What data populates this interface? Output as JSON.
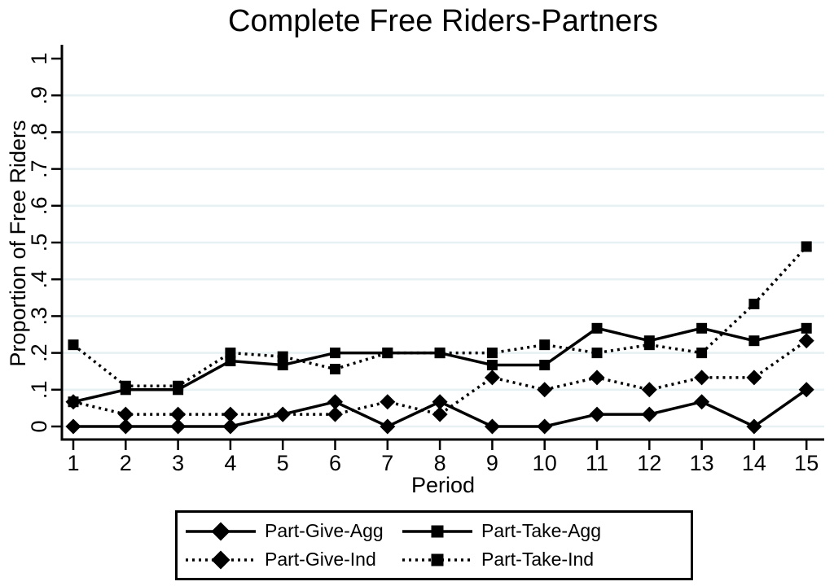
{
  "chart_data": {
    "type": "line",
    "title": "Complete Free Riders-Partners",
    "xlabel": "Period",
    "ylabel": "Proportion of Free Riders",
    "x": [
      1,
      2,
      3,
      4,
      5,
      6,
      7,
      8,
      9,
      10,
      11,
      12,
      13,
      14,
      15
    ],
    "xtick_labels": [
      "1",
      "2",
      "3",
      "4",
      "5",
      "6",
      "7",
      "8",
      "9",
      "10",
      "11",
      "12",
      "13",
      "14",
      "15"
    ],
    "ytick_labels": [
      "0",
      ".1",
      ".2",
      ".3",
      ".4",
      ".5",
      ".6",
      ".7",
      ".8",
      ".9",
      "1"
    ],
    "ytick_values": [
      0,
      0.1,
      0.2,
      0.3,
      0.4,
      0.5,
      0.6,
      0.7,
      0.8,
      0.9,
      1
    ],
    "ylim": [
      0,
      1
    ],
    "grid": "horizontal",
    "gridline_max": 0.9,
    "legend_position": "bottom",
    "series": [
      {
        "name": "Part-Give-Agg",
        "line": "solid",
        "marker": "diamond",
        "values": [
          0,
          0,
          0,
          0,
          0.033,
          0.067,
          0,
          0.067,
          0,
          0,
          0.033,
          0.033,
          0.067,
          0,
          0.1
        ]
      },
      {
        "name": "Part-Take-Agg",
        "line": "solid",
        "marker": "square",
        "values": [
          0.067,
          0.1,
          0.1,
          0.178,
          0.167,
          0.2,
          0.2,
          0.2,
          0.167,
          0.167,
          0.267,
          0.233,
          0.267,
          0.233,
          0.267
        ]
      },
      {
        "name": "Part-Give-Ind",
        "line": "dotted",
        "marker": "diamond",
        "values": [
          0.067,
          0.033,
          0.033,
          0.033,
          0.033,
          0.033,
          0.067,
          0.033,
          0.133,
          0.1,
          0.133,
          0.1,
          0.133,
          0.133,
          0.233
        ]
      },
      {
        "name": "Part-Take-Ind",
        "line": "dotted",
        "marker": "square",
        "values": [
          0.222,
          0.11,
          0.11,
          0.2,
          0.19,
          0.156,
          0.2,
          0.2,
          0.2,
          0.222,
          0.2,
          0.222,
          0.2,
          0.333,
          0.489
        ]
      }
    ],
    "legend_columns": [
      [
        0,
        2
      ],
      [
        1,
        3
      ]
    ],
    "colors": {
      "series": "#000000",
      "axis": "#000000",
      "grid": "#e7f0f3",
      "background": "#ffffff",
      "text": "#000000"
    }
  }
}
